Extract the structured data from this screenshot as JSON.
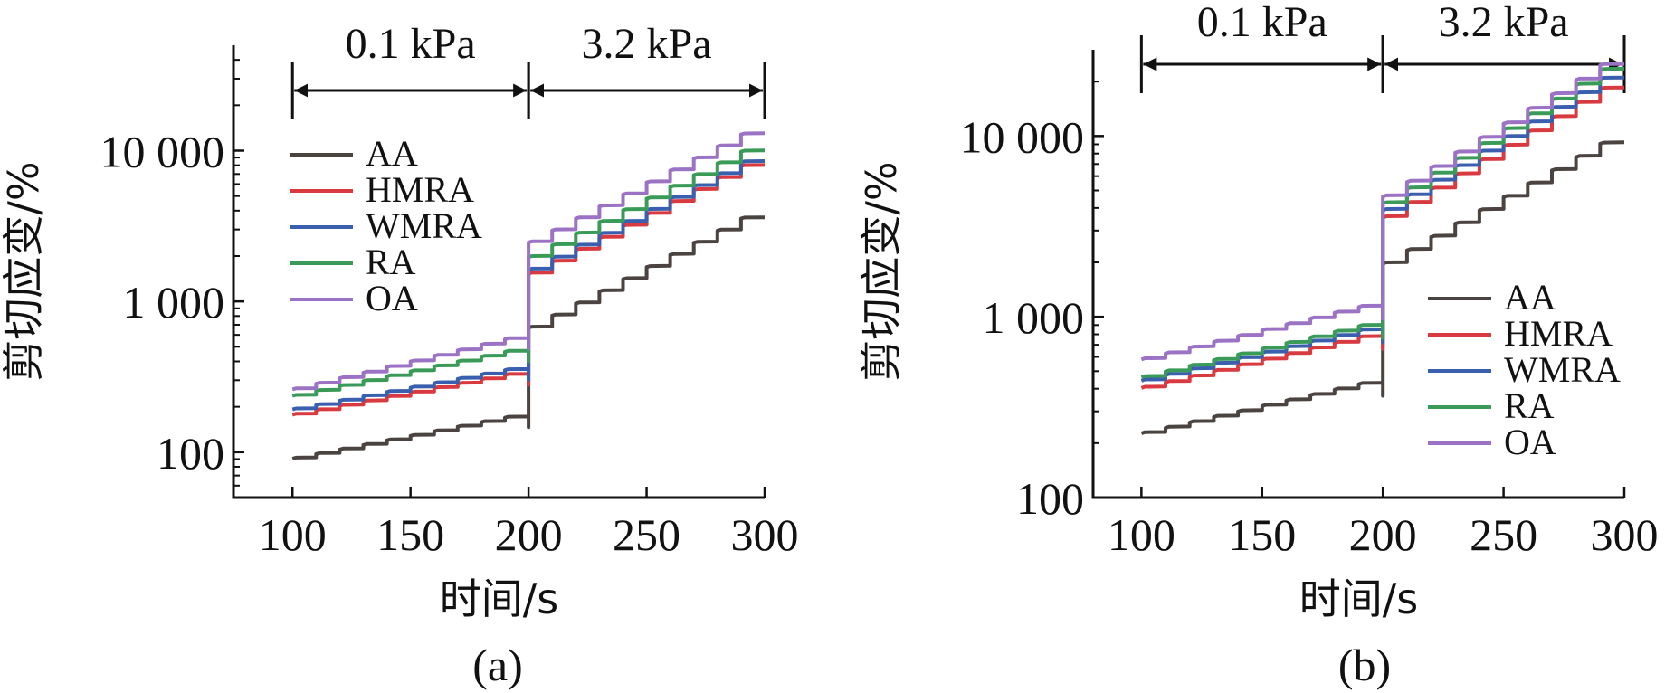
{
  "figure": {
    "panels": [
      {
        "label": "(a)"
      },
      {
        "label": "(b)"
      }
    ]
  },
  "chart_data": [
    {
      "type": "line",
      "panel": "(a)",
      "xlabel": "时间/s",
      "ylabel": "剪切应变/%",
      "xlim": [
        75,
        300
      ],
      "ylim": [
        50,
        50000
      ],
      "yscale": "log",
      "x_ticks": [
        "100",
        "150",
        "200",
        "250",
        "300"
      ],
      "y_ticks": [
        {
          "value": 100,
          "label": "100"
        },
        {
          "value": 1000,
          "label": "1 000"
        },
        {
          "value": 10000,
          "label": "10 000"
        }
      ],
      "annotations": [
        {
          "text": "0.1 kPa",
          "x_from": 100,
          "x_to": 200
        },
        {
          "text": "3.2 kPa",
          "x_from": 200,
          "x_to": 300
        }
      ],
      "legend_position": "upper-left",
      "series": [
        {
          "name": "AA",
          "color": "#4a4340",
          "x": [
            100,
            200,
            210,
            300
          ],
          "y": [
            92,
            172,
            680,
            3600
          ]
        },
        {
          "name": "HMRA",
          "color": "#d93a3f",
          "x": [
            100,
            200,
            210,
            300
          ],
          "y": [
            180,
            330,
            1550,
            8000
          ]
        },
        {
          "name": "WMRA",
          "color": "#3a5fae",
          "x": [
            100,
            200,
            210,
            300
          ],
          "y": [
            195,
            355,
            1650,
            8500
          ]
        },
        {
          "name": "RA",
          "color": "#3a9a58",
          "x": [
            100,
            200,
            210,
            300
          ],
          "y": [
            240,
            470,
            2000,
            10000
          ]
        },
        {
          "name": "OA",
          "color": "#9b72c4",
          "x": [
            100,
            200,
            210,
            300
          ],
          "y": [
            265,
            570,
            2500,
            13000
          ]
        }
      ]
    },
    {
      "type": "line",
      "panel": "(b)",
      "xlabel": "时间/s",
      "ylabel": "剪切应变/%",
      "xlim": [
        80,
        300
      ],
      "ylim": [
        100,
        30000
      ],
      "yscale": "log",
      "x_ticks": [
        "100",
        "150",
        "200",
        "250",
        "300"
      ],
      "y_ticks": [
        {
          "value": 100,
          "label": "100"
        },
        {
          "value": 1000,
          "label": "1 000"
        },
        {
          "value": 10000,
          "label": "10 000"
        }
      ],
      "annotations": [
        {
          "text": "0.1 kPa",
          "x_from": 100,
          "x_to": 200
        },
        {
          "text": "3.2 kPa",
          "x_from": 200,
          "x_to": 300
        }
      ],
      "legend_position": "lower-right",
      "series": [
        {
          "name": "AA",
          "color": "#4a4340",
          "x": [
            100,
            200,
            210,
            300
          ],
          "y": [
            230,
            430,
            2000,
            9200
          ]
        },
        {
          "name": "HMRA",
          "color": "#d93a3f",
          "x": [
            100,
            200,
            210,
            300
          ],
          "y": [
            410,
            780,
            3600,
            18500
          ]
        },
        {
          "name": "WMRA",
          "color": "#3a5fae",
          "x": [
            100,
            200,
            210,
            300
          ],
          "y": [
            450,
            850,
            3950,
            21000
          ]
        },
        {
          "name": "RA",
          "color": "#3a9a58",
          "x": [
            100,
            200,
            210,
            300
          ],
          "y": [
            470,
            900,
            4300,
            23500
          ]
        },
        {
          "name": "OA",
          "color": "#9b72c4",
          "x": [
            100,
            200,
            210,
            300
          ],
          "y": [
            590,
            1150,
            4700,
            25000
          ]
        }
      ]
    }
  ]
}
